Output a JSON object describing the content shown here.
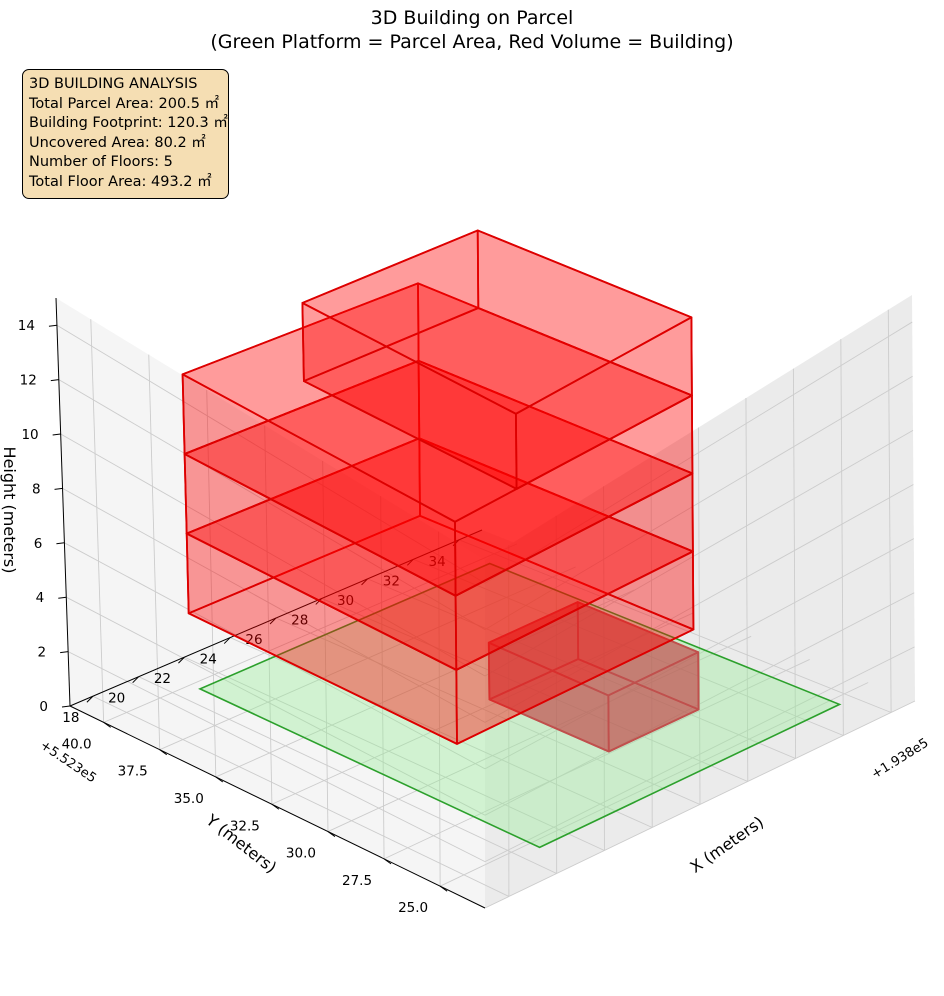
{
  "figure": {
    "title": "3D Building on Parcel",
    "subtitle": "(Green Platform = Parcel Area, Red Volume = Building)"
  },
  "info_box": {
    "heading": "3D BUILDING ANALYSIS",
    "lines": [
      "Total Parcel Area: 200.5 ㎡",
      "Building Footprint: 120.3 ㎡",
      "Uncovered Area: 80.2 ㎡",
      "Number of Floors: 5",
      "Total Floor Area: 493.2 ㎡"
    ]
  },
  "colors": {
    "parcel_fill": "#90ee90",
    "parcel_edge": "#2ca02c",
    "building_fill": "#ff0000",
    "building_edge": "#dd0000",
    "lower_fill": "#c0504d",
    "lower_edge": "#c0504d",
    "pane": "#f2f2f2",
    "grid": "#cccccc"
  },
  "chart_data": {
    "type": "3d-volume",
    "title": "3D Building on Parcel",
    "subtitle": "(Green Platform = Parcel Area, Red Volume = Building)",
    "xlabel": "X (meters)",
    "ylabel": "Y (meters)",
    "zlabel": "Height (meters)",
    "x_offset_label": "+1.938e5",
    "y_offset_label": "+5.523e5",
    "xlim": [
      17,
      35
    ],
    "ylim": [
      23,
      41.5
    ],
    "zlim": [
      0,
      15
    ],
    "xticks": [
      18,
      20,
      22,
      24,
      26,
      28,
      30,
      32,
      34
    ],
    "xtick_labels": [
      "18",
      "20",
      "22",
      "24",
      "26",
      "28",
      "30",
      "32",
      "34"
    ],
    "yticks": [
      25.0,
      27.5,
      30.0,
      32.5,
      35.0,
      37.5,
      40.0
    ],
    "ytick_labels": [
      "25.0",
      "27.5",
      "30.0",
      "32.5",
      "35.0",
      "37.5",
      "40.0"
    ],
    "zticks": [
      0,
      2,
      4,
      6,
      8,
      10,
      12,
      14
    ],
    "ztick_labels": [
      "0",
      "2",
      "4",
      "6",
      "8",
      "10",
      "12",
      "14"
    ],
    "parcel": {
      "name": "Parcel Area",
      "z": 0,
      "corners": [
        [
          20.8,
          24.6
        ],
        [
          33.4,
          24.6
        ],
        [
          33.4,
          39.6
        ],
        [
          20.8,
          39.6
        ]
      ]
    },
    "lower_box": {
      "x": [
        26.6,
        30.4
      ],
      "y": [
        27.6,
        32.8
      ],
      "z": [
        0,
        2.2
      ]
    },
    "building": {
      "name": "Building",
      "x": [
        20.4,
        30.4
      ],
      "y": [
        27.8,
        39.6
      ],
      "floors": [
        {
          "z": [
            3,
            6
          ]
        },
        {
          "z": [
            6,
            9
          ]
        },
        {
          "z": [
            9,
            12
          ]
        },
        {
          "z": [
            12,
            15
          ],
          "x": [
            23.0,
            30.4
          ],
          "y": [
            27.8,
            37.0
          ]
        }
      ]
    }
  }
}
